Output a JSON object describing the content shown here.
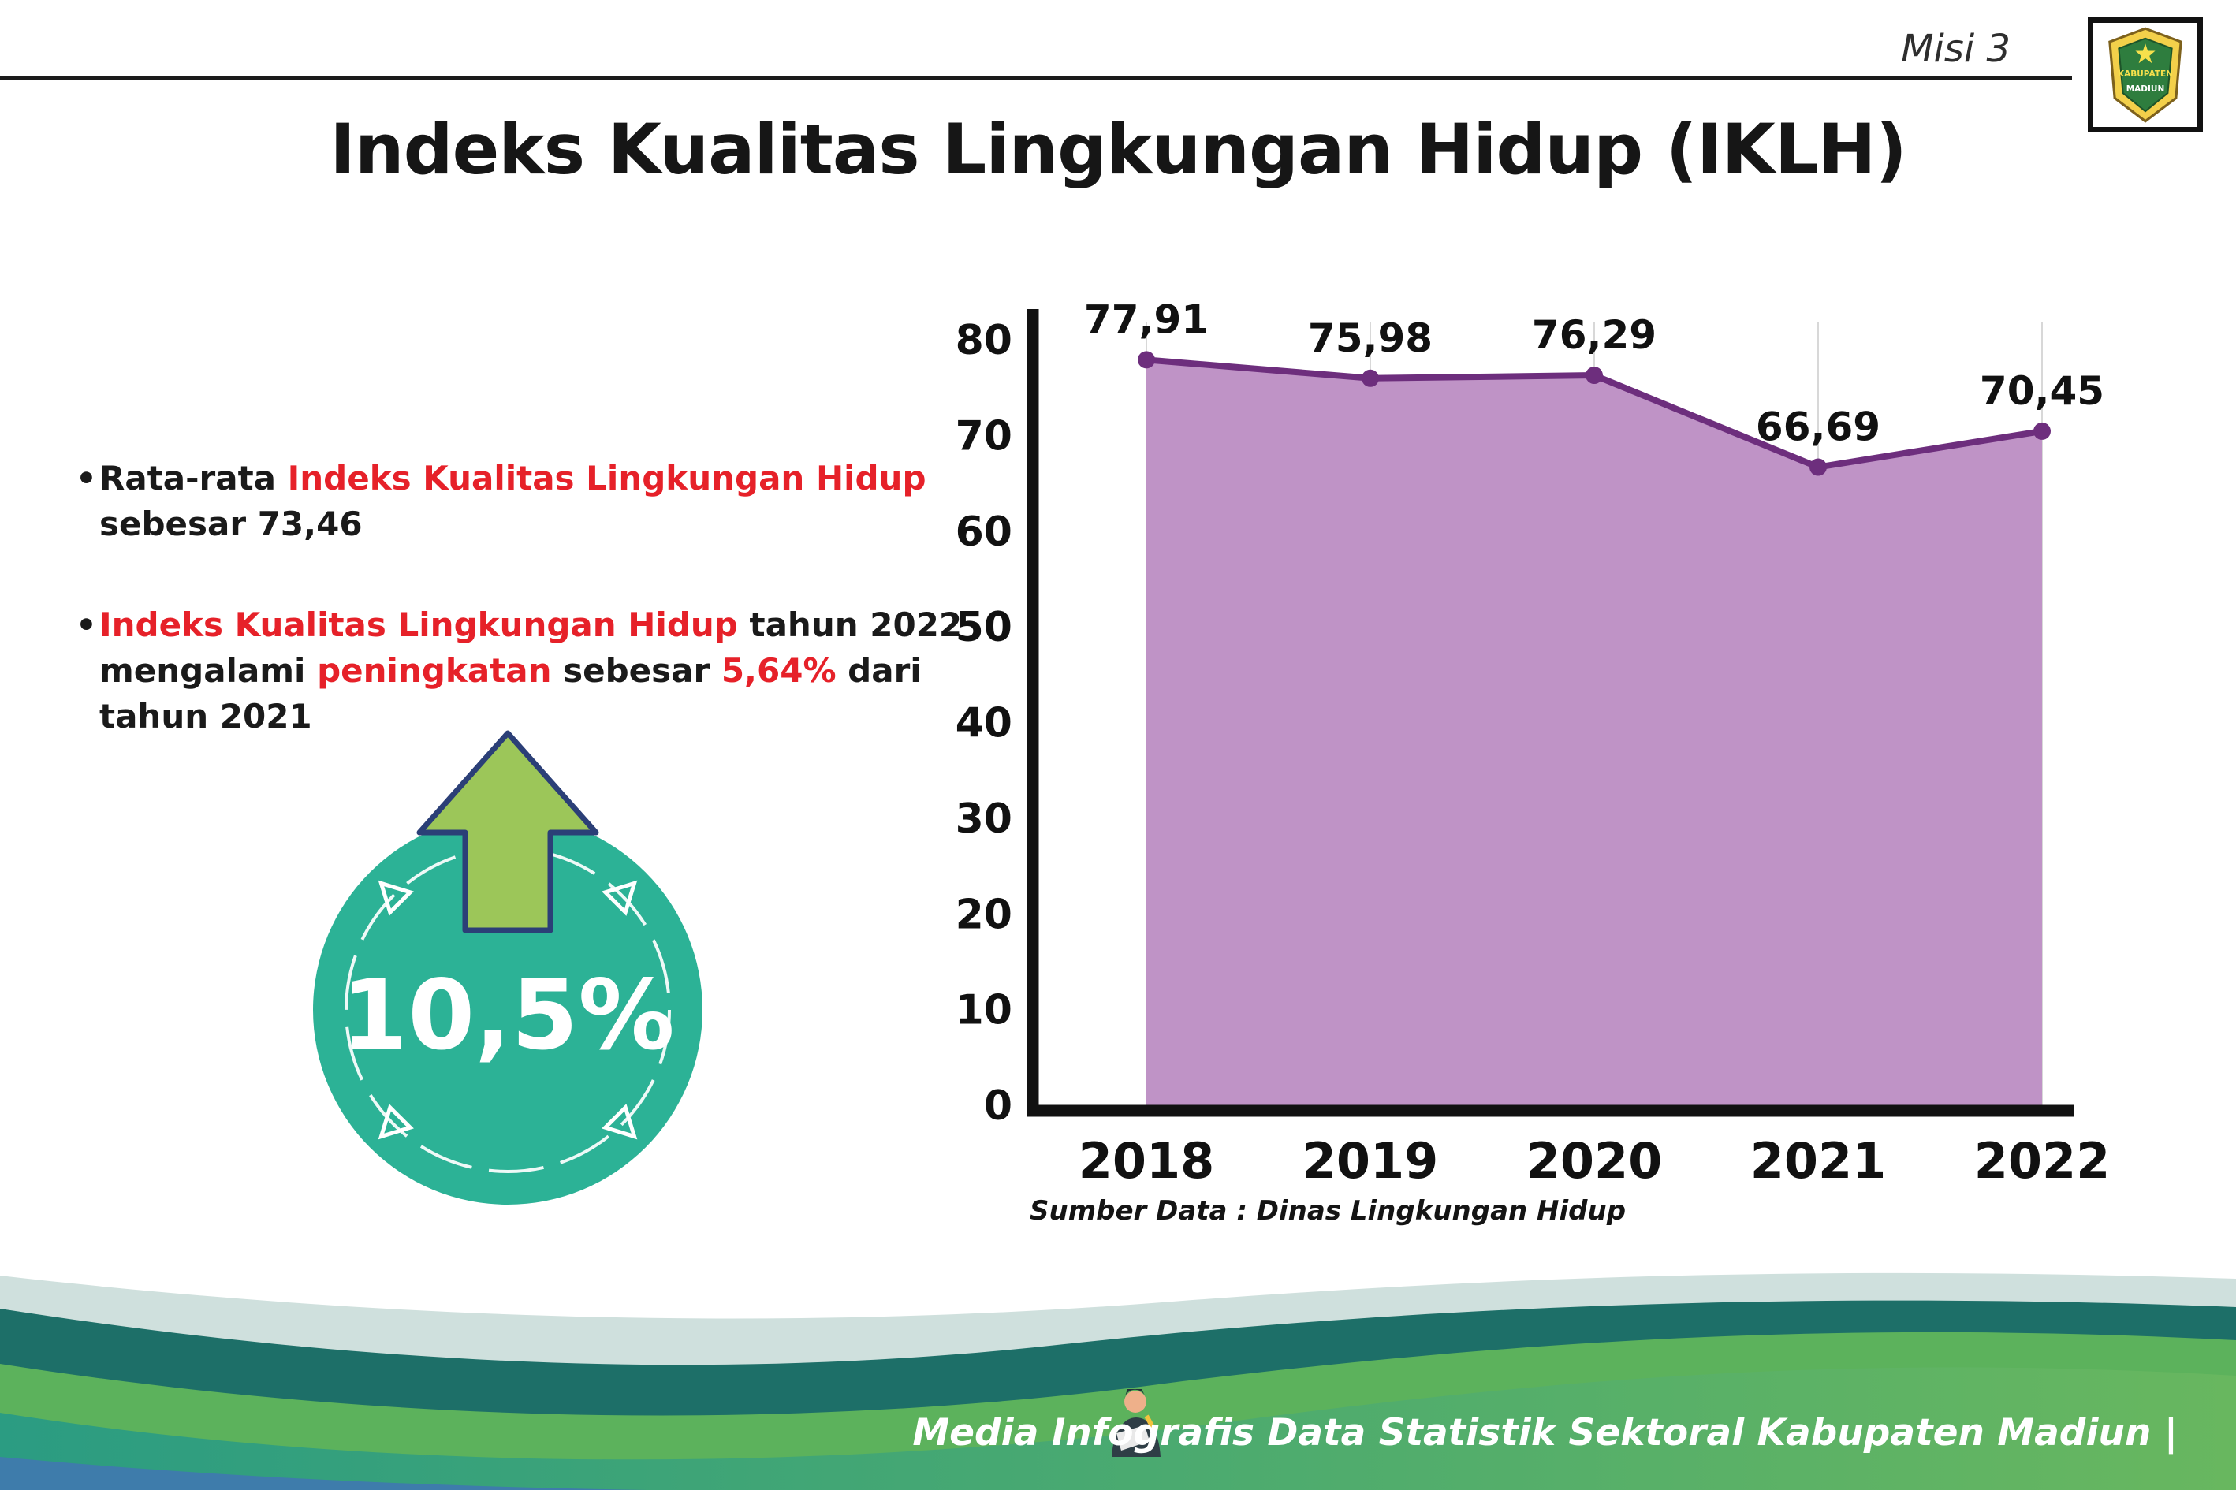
{
  "header": {
    "misi": "Misi 3",
    "title": "Indeks Kualitas Lingkungan Hidup (IKLH)",
    "logo": {
      "top_text": "KABUPATEN",
      "bottom_text": "MADIUN"
    }
  },
  "bullets": {
    "bullet_char": "•",
    "b1": {
      "l1a": "Rata-rata ",
      "l1b": "Indeks Kualitas Lingkungan Hidup",
      "l2": "sebesar 73,46"
    },
    "b2": {
      "l1a": "Indeks Kualitas Lingkungan Hidup",
      "l1b": " tahun 2022",
      "l2a": "mengalami ",
      "l2b": "peningkatan",
      "l2c": " sebesar ",
      "l2d": "5,64%",
      "l2e": " dari",
      "l3": "tahun 2021"
    }
  },
  "badge": {
    "value": "10,5%"
  },
  "chart_data": {
    "type": "area",
    "title": "Indeks Kualitas Lingkungan Hidup (IKLH)",
    "categories": [
      "2018",
      "2019",
      "2020",
      "2021",
      "2022"
    ],
    "values": [
      77.91,
      75.98,
      76.29,
      66.69,
      70.45
    ],
    "point_labels": [
      "77,91",
      "75,98",
      "76,29",
      "66,69",
      "70,45"
    ],
    "xlabel": "",
    "ylabel": "",
    "ylim": [
      0,
      80
    ],
    "yticks": [
      0,
      10,
      20,
      30,
      40,
      50,
      60,
      70,
      80
    ],
    "grid": "vertical-light",
    "legend": "none",
    "colors": {
      "area_fill": "#bf93c6",
      "line": "#6d2e7d",
      "marker": "#6d2e7d"
    },
    "source": "Sumber Data : Dinas Lingkungan Hidup"
  },
  "footer": {
    "credit": "Media Infografis Data Statistik Sektoral Kabupaten Madiun |"
  },
  "colors": {
    "accent_red": "#e62129",
    "badge_teal": "#2cb296",
    "arrow_green": "#9cc659",
    "footer_dark_teal": "#1d6f68",
    "footer_green": "#5cb25c"
  }
}
